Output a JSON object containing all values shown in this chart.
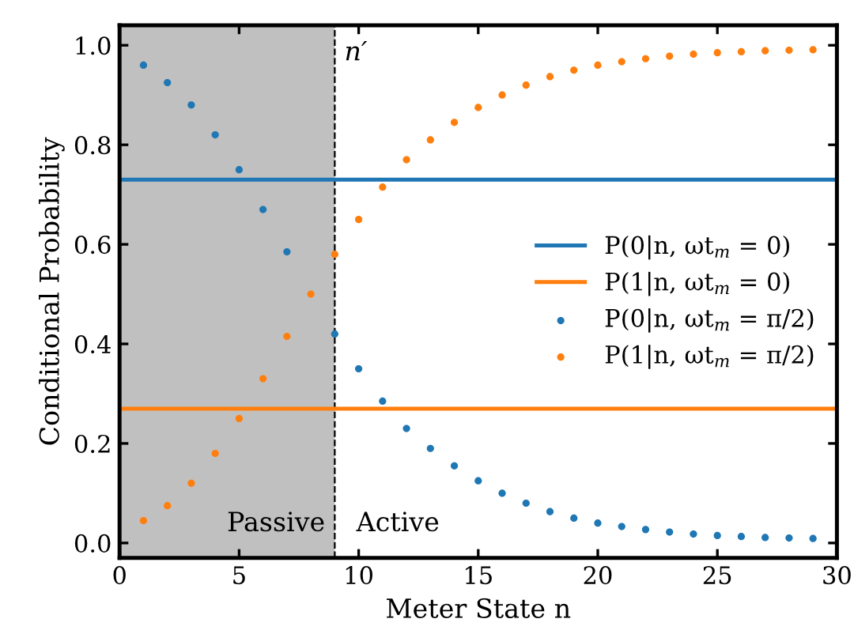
{
  "chart_data": {
    "type": "line",
    "xlabel": "Meter State n",
    "ylabel": "Conditional Probability",
    "xlim": [
      0,
      30
    ],
    "ylim": [
      -0.03,
      1.04
    ],
    "xticks": [
      0,
      5,
      10,
      15,
      20,
      25,
      30
    ],
    "yticks": [
      {
        "value": 0,
        "label": "0.0"
      },
      0.2,
      0.4,
      0.6,
      0.8,
      {
        "value": 1,
        "label": "1.0"
      }
    ],
    "grid": false,
    "legend": "right",
    "series": [
      {
        "name": "P(0|n, ωt$_{m}$ = 0)",
        "color": "#1f77b4",
        "x": [
          0,
          30
        ],
        "values": [
          0.73,
          0.73
        ],
        "line_style": "solid"
      },
      {
        "name": "P(1|n, ωt$_{m}$ = 0)",
        "color": "#ff7f0e",
        "x": [
          0,
          30
        ],
        "values": [
          0.27,
          0.27
        ],
        "line_style": "solid"
      },
      {
        "name": "P(0|n, ωt$_{m}$ = π/2)",
        "type": "scatter",
        "marker": "circle",
        "color": "#1f77b4",
        "x": [
          1,
          2,
          3,
          4,
          5,
          6,
          7,
          8,
          9,
          10,
          11,
          12,
          13,
          14,
          15,
          16,
          17,
          18,
          19,
          20,
          21,
          22,
          23,
          24,
          25,
          26,
          27,
          28,
          29
        ],
        "values": [
          0.96,
          0.925,
          0.88,
          0.82,
          0.75,
          0.67,
          0.585,
          null,
          0.42,
          0.35,
          0.285,
          0.23,
          0.19,
          0.155,
          0.125,
          0.1,
          0.08,
          0.063,
          0.05,
          0.04,
          0.033,
          0.027,
          0.022,
          0.018,
          0.015,
          0.013,
          0.011,
          0.01,
          0.009
        ]
      },
      {
        "name": "P(1|n, ωt$_{m}$ = π/2)",
        "type": "scatter",
        "marker": "circle",
        "color": "#ff7f0e",
        "x": [
          1,
          2,
          3,
          4,
          5,
          6,
          7,
          8,
          9,
          10,
          11,
          12,
          13,
          14,
          15,
          16,
          17,
          18,
          19,
          20,
          21,
          22,
          23,
          24,
          25,
          26,
          27,
          28,
          29
        ],
        "values": [
          0.045,
          0.075,
          0.12,
          0.18,
          0.25,
          0.33,
          0.415,
          0.5,
          0.58,
          0.65,
          0.715,
          0.77,
          0.81,
          0.845,
          0.875,
          0.9,
          0.92,
          0.937,
          0.95,
          0.96,
          0.967,
          0.973,
          0.978,
          0.982,
          0.985,
          0.987,
          0.989,
          0.99,
          0.991
        ]
      }
    ],
    "bands": [
      {
        "axis": "x",
        "from": 0,
        "to": 9,
        "color": "#c0c0c0",
        "label": "Passive"
      }
    ],
    "ref_lines": [
      {
        "axis": "x",
        "value": 9,
        "label": "n′",
        "color": "#000000",
        "line_style": "dashed"
      }
    ],
    "annotations": [
      "Active"
    ]
  }
}
